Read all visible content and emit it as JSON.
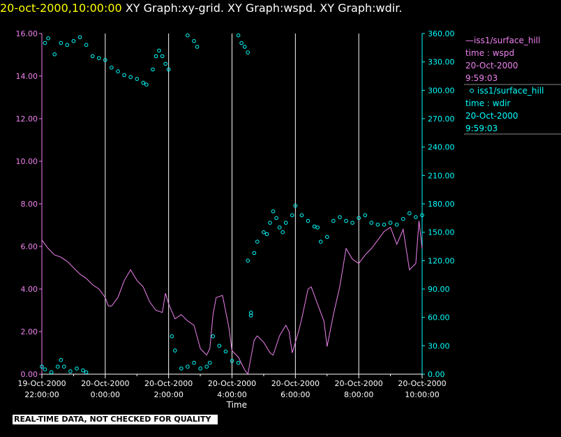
{
  "header": {
    "timestamp": "20-oct-2000,10:00:00",
    "titles": "XY Graph:xy-grid.  XY Graph:wspd.  XY Graph:wdir."
  },
  "quality_banner": "REAL-TIME DATA, NOT CHECKED FOR QUALITY",
  "colors": {
    "wspd": "#ee82ee",
    "wdir": "#00ffff",
    "axis_left": "#ee82ee",
    "axis_right": "#00ffff",
    "grid": "#ffffff",
    "title_time": "#ffff00"
  },
  "legend": {
    "wspd": {
      "prefix": "—",
      "station": "iss1/surface_hill",
      "var": "time : wspd",
      "date": "20-Oct-2000",
      "time": "9:59:03"
    },
    "wdir": {
      "prefix": "o",
      "station": "iss1/surface_hill",
      "var": "time : wdir",
      "date": "20-Oct-2000",
      "time": "9:59:03"
    }
  },
  "chart_data": {
    "type": "line",
    "xlabel": "Time",
    "x_range_hours": [
      -2,
      10
    ],
    "x_ticks": [
      {
        "h": -2,
        "date": "19-Oct-2000",
        "time": "22:00:00"
      },
      {
        "h": 0,
        "date": "20-Oct-2000",
        "time": "0:00:00"
      },
      {
        "h": 2,
        "date": "20-Oct-2000",
        "time": "2:00:00"
      },
      {
        "h": 4,
        "date": "20-Oct-2000",
        "time": "4:00:00"
      },
      {
        "h": 6,
        "date": "20-Oct-2000",
        "time": "6:00:00"
      },
      {
        "h": 8,
        "date": "20-Oct-2000",
        "time": "8:00:00"
      },
      {
        "h": 10,
        "date": "20-Oct-2000",
        "time": "10:00:00"
      }
    ],
    "y_left": {
      "name": "wspd",
      "range": [
        0,
        16
      ],
      "ticks": [
        "0.00",
        "2.00",
        "4.00",
        "6.00",
        "8.00",
        "10.00",
        "12.00",
        "14.00",
        "16.00"
      ]
    },
    "y_right": {
      "name": "wdir",
      "range": [
        0,
        360
      ],
      "ticks": [
        "0.00",
        "30.00",
        "60.00",
        "90.00",
        "120.00",
        "150.00",
        "180.00",
        "210.00",
        "240.00",
        "270.00",
        "300.00",
        "330.00",
        "360.00"
      ]
    },
    "series": [
      {
        "name": "wspd",
        "axis": "left",
        "style": "line",
        "points": [
          [
            -2.0,
            6.3
          ],
          [
            -1.8,
            5.9
          ],
          [
            -1.6,
            5.6
          ],
          [
            -1.4,
            5.5
          ],
          [
            -1.2,
            5.3
          ],
          [
            -1.0,
            5.0
          ],
          [
            -0.8,
            4.7
          ],
          [
            -0.6,
            4.5
          ],
          [
            -0.4,
            4.2
          ],
          [
            -0.2,
            4.0
          ],
          [
            0.0,
            3.6
          ],
          [
            0.1,
            3.2
          ],
          [
            0.2,
            3.2
          ],
          [
            0.4,
            3.6
          ],
          [
            0.6,
            4.4
          ],
          [
            0.8,
            4.9
          ],
          [
            1.0,
            4.4
          ],
          [
            1.2,
            4.1
          ],
          [
            1.4,
            3.4
          ],
          [
            1.6,
            3.0
          ],
          [
            1.8,
            2.9
          ],
          [
            1.9,
            3.8
          ],
          [
            2.0,
            3.3
          ],
          [
            2.2,
            2.6
          ],
          [
            2.4,
            2.8
          ],
          [
            2.6,
            2.5
          ],
          [
            2.8,
            2.3
          ],
          [
            3.0,
            1.2
          ],
          [
            3.2,
            0.9
          ],
          [
            3.3,
            1.2
          ],
          [
            3.4,
            2.8
          ],
          [
            3.5,
            3.6
          ],
          [
            3.7,
            3.7
          ],
          [
            3.9,
            2.2
          ],
          [
            4.0,
            1.1
          ],
          [
            4.2,
            0.8
          ],
          [
            4.4,
            0.2
          ],
          [
            4.5,
            0.0
          ],
          [
            4.7,
            1.6
          ],
          [
            4.8,
            1.8
          ],
          [
            5.0,
            1.5
          ],
          [
            5.2,
            1.0
          ],
          [
            5.3,
            0.9
          ],
          [
            5.5,
            1.8
          ],
          [
            5.7,
            2.3
          ],
          [
            5.8,
            2.0
          ],
          [
            5.9,
            1.0
          ],
          [
            6.1,
            2.0
          ],
          [
            6.2,
            2.6
          ],
          [
            6.4,
            4.0
          ],
          [
            6.5,
            4.1
          ],
          [
            6.7,
            3.3
          ],
          [
            6.9,
            2.5
          ],
          [
            7.0,
            1.3
          ],
          [
            7.2,
            2.8
          ],
          [
            7.4,
            4.1
          ],
          [
            7.6,
            5.9
          ],
          [
            7.8,
            5.4
          ],
          [
            8.0,
            5.2
          ],
          [
            8.2,
            5.6
          ],
          [
            8.4,
            5.9
          ],
          [
            8.6,
            6.3
          ],
          [
            8.8,
            6.7
          ],
          [
            9.0,
            6.9
          ],
          [
            9.2,
            6.1
          ],
          [
            9.4,
            6.8
          ],
          [
            9.6,
            4.9
          ],
          [
            9.8,
            5.2
          ],
          [
            9.9,
            7.2
          ],
          [
            10.0,
            5.9
          ]
        ]
      },
      {
        "name": "wdir",
        "axis": "right",
        "style": "circle",
        "points": [
          [
            -2.0,
            8
          ],
          [
            -1.9,
            5
          ],
          [
            -1.7,
            2
          ],
          [
            -1.5,
            8
          ],
          [
            -1.4,
            15
          ],
          [
            -1.3,
            8
          ],
          [
            -1.1,
            3
          ],
          [
            -0.9,
            6
          ],
          [
            -0.7,
            4
          ],
          [
            -0.6,
            2
          ],
          [
            -1.9,
            350
          ],
          [
            -1.8,
            355
          ],
          [
            -1.6,
            338
          ],
          [
            -1.4,
            350
          ],
          [
            -1.2,
            348
          ],
          [
            -1.0,
            352
          ],
          [
            -0.8,
            356
          ],
          [
            -0.6,
            348
          ],
          [
            -0.4,
            336
          ],
          [
            -0.2,
            334
          ],
          [
            0.0,
            332
          ],
          [
            0.2,
            324
          ],
          [
            0.4,
            320
          ],
          [
            0.6,
            316
          ],
          [
            0.8,
            314
          ],
          [
            1.0,
            312
          ],
          [
            1.2,
            308
          ],
          [
            1.3,
            306
          ],
          [
            1.5,
            322
          ],
          [
            1.6,
            336
          ],
          [
            1.7,
            342
          ],
          [
            1.8,
            336
          ],
          [
            1.9,
            328
          ],
          [
            2.0,
            322
          ],
          [
            2.1,
            40
          ],
          [
            2.2,
            25
          ],
          [
            2.4,
            6
          ],
          [
            2.6,
            8
          ],
          [
            2.8,
            12
          ],
          [
            3.0,
            6
          ],
          [
            3.2,
            8
          ],
          [
            3.3,
            12
          ],
          [
            3.4,
            40
          ],
          [
            3.6,
            30
          ],
          [
            3.8,
            24
          ],
          [
            4.0,
            14
          ],
          [
            4.2,
            12
          ],
          [
            2.6,
            358
          ],
          [
            2.8,
            352
          ],
          [
            2.9,
            346
          ],
          [
            4.2,
            358
          ],
          [
            4.3,
            350
          ],
          [
            4.4,
            346
          ],
          [
            4.5,
            340
          ],
          [
            4.6,
            62
          ],
          [
            4.7,
            128
          ],
          [
            4.8,
            140
          ],
          [
            5.0,
            150
          ],
          [
            5.1,
            148
          ],
          [
            5.2,
            160
          ],
          [
            5.3,
            172
          ],
          [
            5.4,
            165
          ],
          [
            5.6,
            150
          ],
          [
            5.7,
            160
          ],
          [
            5.9,
            168
          ],
          [
            6.0,
            178
          ],
          [
            6.2,
            168
          ],
          [
            6.4,
            162
          ],
          [
            6.6,
            156
          ],
          [
            6.7,
            155
          ],
          [
            6.8,
            140
          ],
          [
            7.0,
            145
          ],
          [
            7.2,
            162
          ],
          [
            7.4,
            166
          ],
          [
            7.6,
            162
          ],
          [
            7.8,
            160
          ],
          [
            8.0,
            165
          ],
          [
            8.2,
            168
          ],
          [
            8.4,
            160
          ],
          [
            8.6,
            158
          ],
          [
            8.8,
            158
          ],
          [
            9.0,
            160
          ],
          [
            9.2,
            158
          ],
          [
            9.4,
            164
          ],
          [
            9.6,
            170
          ],
          [
            9.8,
            166
          ],
          [
            10.0,
            168
          ],
          [
            4.6,
            65
          ],
          [
            4.5,
            120
          ],
          [
            5.5,
            155
          ]
        ]
      }
    ]
  }
}
